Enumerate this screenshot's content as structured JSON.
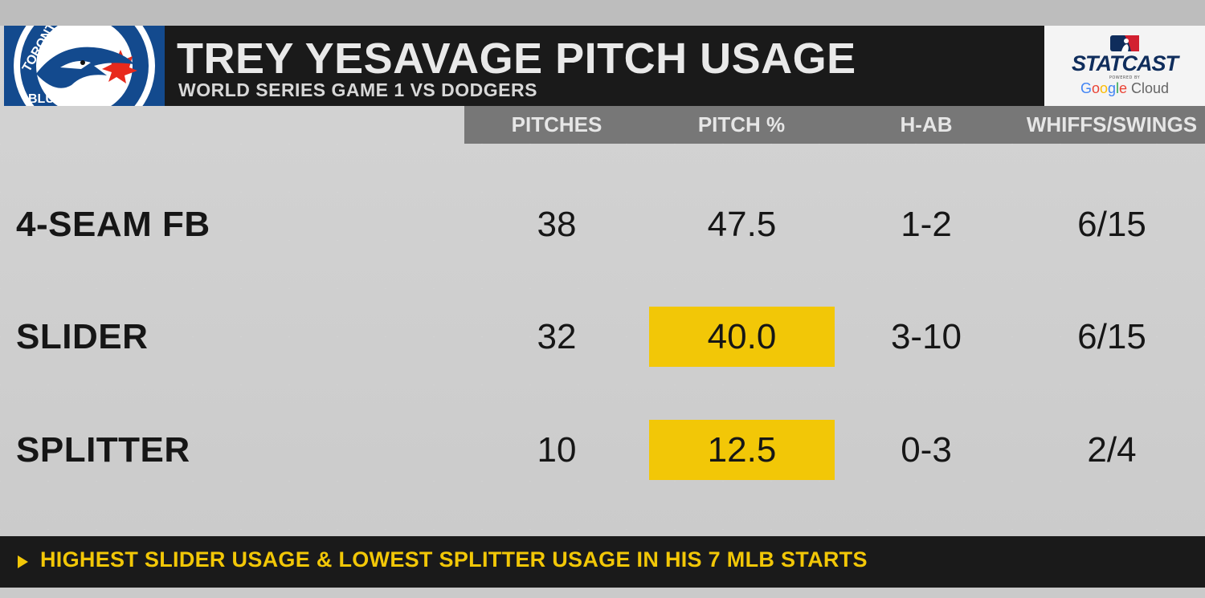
{
  "header": {
    "title": "TREY YESAVAGE PITCH USAGE",
    "subtitle": "WORLD SERIES GAME 1 VS DODGERS",
    "team_logo_text_top": "TORONTO",
    "team_logo_text_bottom": "BLUE JAYS"
  },
  "brand": {
    "statcast": "STATCAST",
    "powered_by": "POWERED BY",
    "google_cloud": {
      "g1": "G",
      "o1": "o",
      "o2": "o",
      "g2": "g",
      "l": "l",
      "e": "e",
      "cloud": " Cloud"
    }
  },
  "table": {
    "columns": [
      "PITCHES",
      "PITCH %",
      "H-AB",
      "WHIFFS/SWINGS"
    ],
    "rows": [
      {
        "pitch": "4-SEAM FB",
        "pitches": "38",
        "pitch_pct": "47.5",
        "h_ab": "1-2",
        "whiffs_swings": "6/15",
        "highlight": false
      },
      {
        "pitch": "SLIDER",
        "pitches": "32",
        "pitch_pct": "40.0",
        "h_ab": "3-10",
        "whiffs_swings": "6/15",
        "highlight": true
      },
      {
        "pitch": "SPLITTER",
        "pitches": "10",
        "pitch_pct": "12.5",
        "h_ab": "0-3",
        "whiffs_swings": "2/4",
        "highlight": true
      }
    ]
  },
  "footer": {
    "note": "HIGHEST SLIDER USAGE & LOWEST SPLITTER USAGE IN HIS 7 MLB STARTS"
  },
  "colors": {
    "highlight": "#f2c707",
    "header_bg": "#1a1a1a",
    "column_bar": "#777777",
    "blue_jays_blue": "#134a8e"
  }
}
